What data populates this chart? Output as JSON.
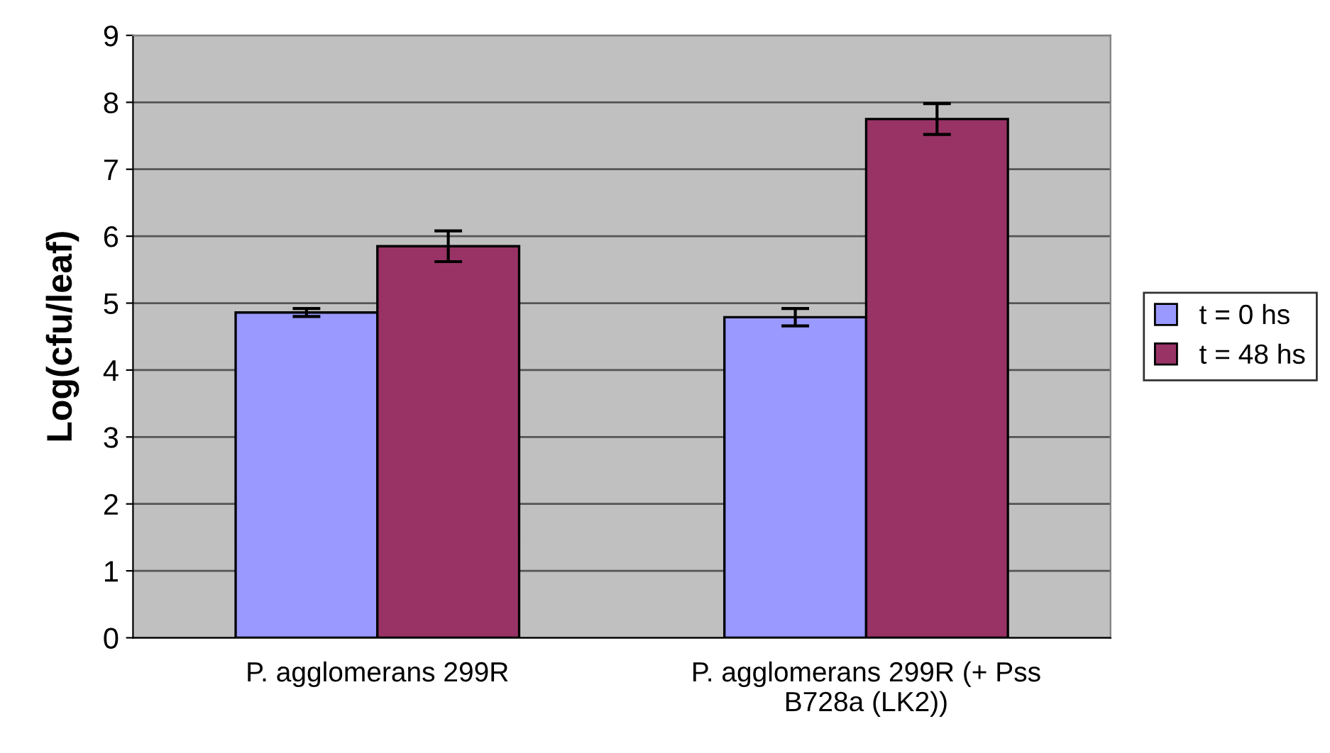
{
  "chart_data": {
    "type": "bar",
    "ylabel": "Log(cfu/leaf)",
    "categories": [
      "P. agglomerans 299R",
      "P. agglomerans 299R (+ Pss\nB728a (LK2))"
    ],
    "series": [
      {
        "name": "t = 0 hs",
        "color": "#9999ff",
        "values": [
          4.86,
          4.79
        ],
        "errors": [
          0.06,
          0.13
        ]
      },
      {
        "name": "t = 48 hs",
        "color": "#993366",
        "values": [
          5.85,
          7.75
        ],
        "errors": [
          0.23,
          0.23
        ]
      }
    ],
    "ylim": [
      0,
      9
    ],
    "yticks": [
      0,
      1,
      2,
      3,
      4,
      5,
      6,
      7,
      8,
      9
    ],
    "grid": "y",
    "legend": "right"
  }
}
